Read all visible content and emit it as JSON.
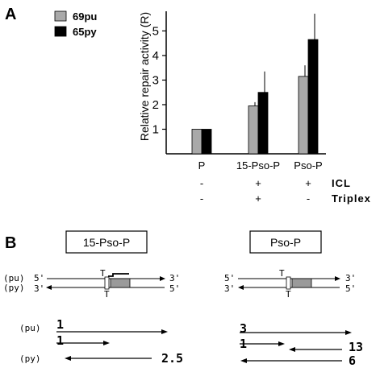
{
  "panel_a": {
    "letter": "A"
  },
  "panel_b": {
    "letter": "B",
    "left_box": "15-Pso-P",
    "right_box": "Pso-P",
    "strand_labels": {
      "pu": "(pu)",
      "py": "(py)"
    },
    "ends": {
      "five": "5'",
      "three": "3'"
    },
    "adduct_mark": "T",
    "left_products": {
      "pu": [
        "1",
        "1"
      ],
      "py": [
        "2.5"
      ]
    },
    "right_products": {
      "pu": [
        "3",
        "1"
      ],
      "py": [
        "13",
        "6"
      ]
    }
  },
  "chart_data": {
    "type": "bar",
    "title": "",
    "xlabel": "",
    "ylabel": "Relative repair activity (R)",
    "ylim": [
      0,
      5.8
    ],
    "yticks": [
      "1",
      "2",
      "3",
      "4",
      "5"
    ],
    "categories": [
      "P",
      "15-Pso-P",
      "Pso-P"
    ],
    "series": [
      {
        "name": "69pu",
        "color": "#a9a9a9",
        "values": [
          1.0,
          1.95,
          3.15
        ],
        "errors": [
          0,
          0.15,
          0.45
        ]
      },
      {
        "name": "65py",
        "color": "#000000",
        "values": [
          1.0,
          2.5,
          4.65
        ],
        "errors": [
          0,
          0.85,
          1.05
        ]
      }
    ],
    "legend_position": "top-left",
    "grid": false,
    "conditions": [
      {
        "label": "ICL",
        "values": [
          "-",
          "+",
          "+"
        ]
      },
      {
        "label": "Triplex",
        "values": [
          "-",
          "+",
          "-"
        ]
      }
    ]
  }
}
